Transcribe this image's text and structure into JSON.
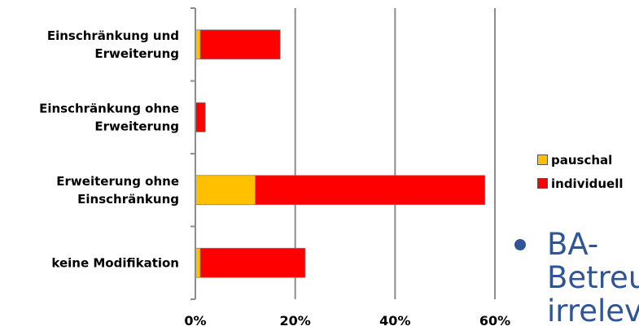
{
  "chart_data": {
    "type": "bar",
    "orientation": "horizontal",
    "stacked": true,
    "categories": [
      [
        "Einschränkung und",
        "Erweiterung"
      ],
      [
        "Einschränkung ohne",
        "Erweiterung"
      ],
      [
        "Erweiterung ohne",
        "Einschränkung"
      ],
      [
        "keine Modifikation"
      ]
    ],
    "series": [
      {
        "name": "pauschal",
        "color": "#ffc000",
        "values": [
          1,
          0,
          12,
          1
        ]
      },
      {
        "name": "individuell",
        "color": "#ff0000",
        "values": [
          16,
          2,
          46,
          21
        ]
      }
    ],
    "xlim": [
      0,
      60
    ],
    "xticks": [
      "0%",
      "20%",
      "40%",
      "60%"
    ],
    "grid": true,
    "legend_position": "right"
  },
  "slide_text": {
    "bullet_lines": [
      "BA-",
      "Betreu",
      "irreleva"
    ]
  }
}
